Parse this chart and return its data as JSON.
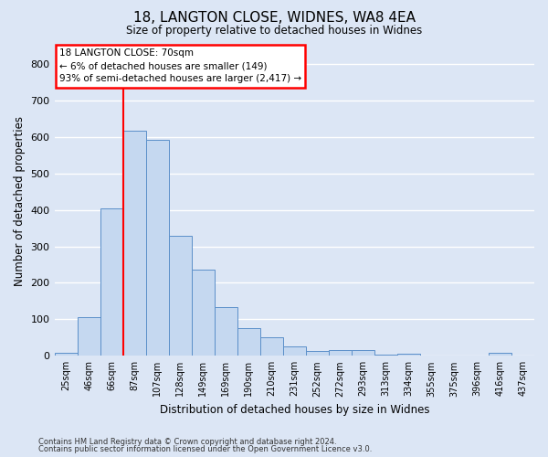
{
  "title1": "18, LANGTON CLOSE, WIDNES, WA8 4EA",
  "title2": "Size of property relative to detached houses in Widnes",
  "xlabel": "Distribution of detached houses by size in Widnes",
  "ylabel": "Number of detached properties",
  "categories": [
    "25sqm",
    "46sqm",
    "66sqm",
    "87sqm",
    "107sqm",
    "128sqm",
    "149sqm",
    "169sqm",
    "190sqm",
    "210sqm",
    "231sqm",
    "252sqm",
    "272sqm",
    "293sqm",
    "313sqm",
    "334sqm",
    "355sqm",
    "375sqm",
    "396sqm",
    "416sqm",
    "437sqm"
  ],
  "values": [
    8,
    107,
    405,
    616,
    592,
    330,
    237,
    133,
    77,
    52,
    26,
    13,
    16,
    15,
    4,
    7,
    0,
    0,
    0,
    9,
    0
  ],
  "bar_color": "#c5d8f0",
  "bar_edge_color": "#5b8fc9",
  "annotation_text": "18 LANGTON CLOSE: 70sqm\n← 6% of detached houses are smaller (149)\n93% of semi-detached houses are larger (2,417) →",
  "annotation_box_color": "white",
  "annotation_box_edge_color": "red",
  "vline_color": "red",
  "vline_x": 2.5,
  "ylim": [
    0,
    850
  ],
  "yticks": [
    0,
    100,
    200,
    300,
    400,
    500,
    600,
    700,
    800
  ],
  "footer1": "Contains HM Land Registry data © Crown copyright and database right 2024.",
  "footer2": "Contains public sector information licensed under the Open Government Licence v3.0.",
  "bg_color": "#dce6f5",
  "plot_bg_color": "#dce6f5",
  "grid_color": "white"
}
